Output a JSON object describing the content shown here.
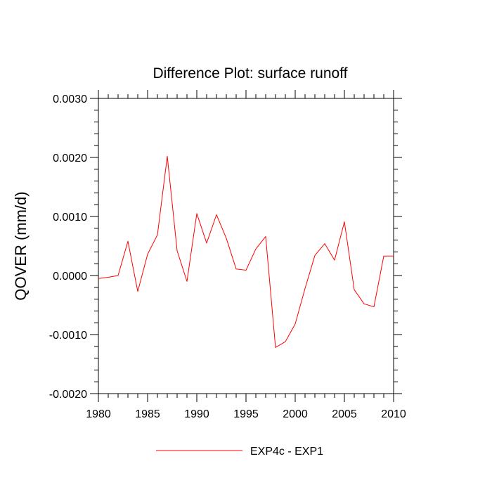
{
  "chart_data": {
    "type": "line",
    "title": "Difference Plot: surface runoff",
    "xlabel": "",
    "ylabel": "QOVER  (mm/d)",
    "xlim": [
      1980,
      2010
    ],
    "ylim": [
      -0.002,
      0.003
    ],
    "x_ticks": [
      1980,
      1985,
      1990,
      1995,
      2000,
      2005,
      2010
    ],
    "x_tick_labels": [
      "1980",
      "1985",
      "1990",
      "1995",
      "2000",
      "2005",
      "2010"
    ],
    "y_ticks": [
      -0.002,
      -0.001,
      0.0,
      0.001,
      0.002,
      0.003
    ],
    "y_tick_labels": [
      "-0.0020",
      "-0.0010",
      "0.0000",
      "0.0010",
      "0.0020",
      "0.0030"
    ],
    "grid": false,
    "legend_position": "bottom-center",
    "series": [
      {
        "name": "EXP4c - EXP1",
        "color": "#ff0000",
        "x": [
          1980,
          1981,
          1982,
          1983,
          1984,
          1985,
          1986,
          1987,
          1988,
          1989,
          1990,
          1991,
          1992,
          1993,
          1994,
          1995,
          1996,
          1997,
          1998,
          1999,
          2000,
          2001,
          2002,
          2003,
          2004,
          2005,
          2006,
          2007,
          2008,
          2009,
          2010
        ],
        "y": [
          -5e-05,
          -3e-05,
          0.0,
          0.00058,
          -0.00027,
          0.00036,
          0.00069,
          0.00202,
          0.00042,
          -0.0001,
          0.00105,
          0.00055,
          0.00103,
          0.00063,
          0.00011,
          9e-05,
          0.00045,
          0.00066,
          -0.00122,
          -0.00112,
          -0.00082,
          -0.00022,
          0.00034,
          0.00054,
          0.00026,
          0.00091,
          -0.00024,
          -0.00048,
          -0.00053,
          0.00033,
          0.00033
        ]
      }
    ]
  }
}
